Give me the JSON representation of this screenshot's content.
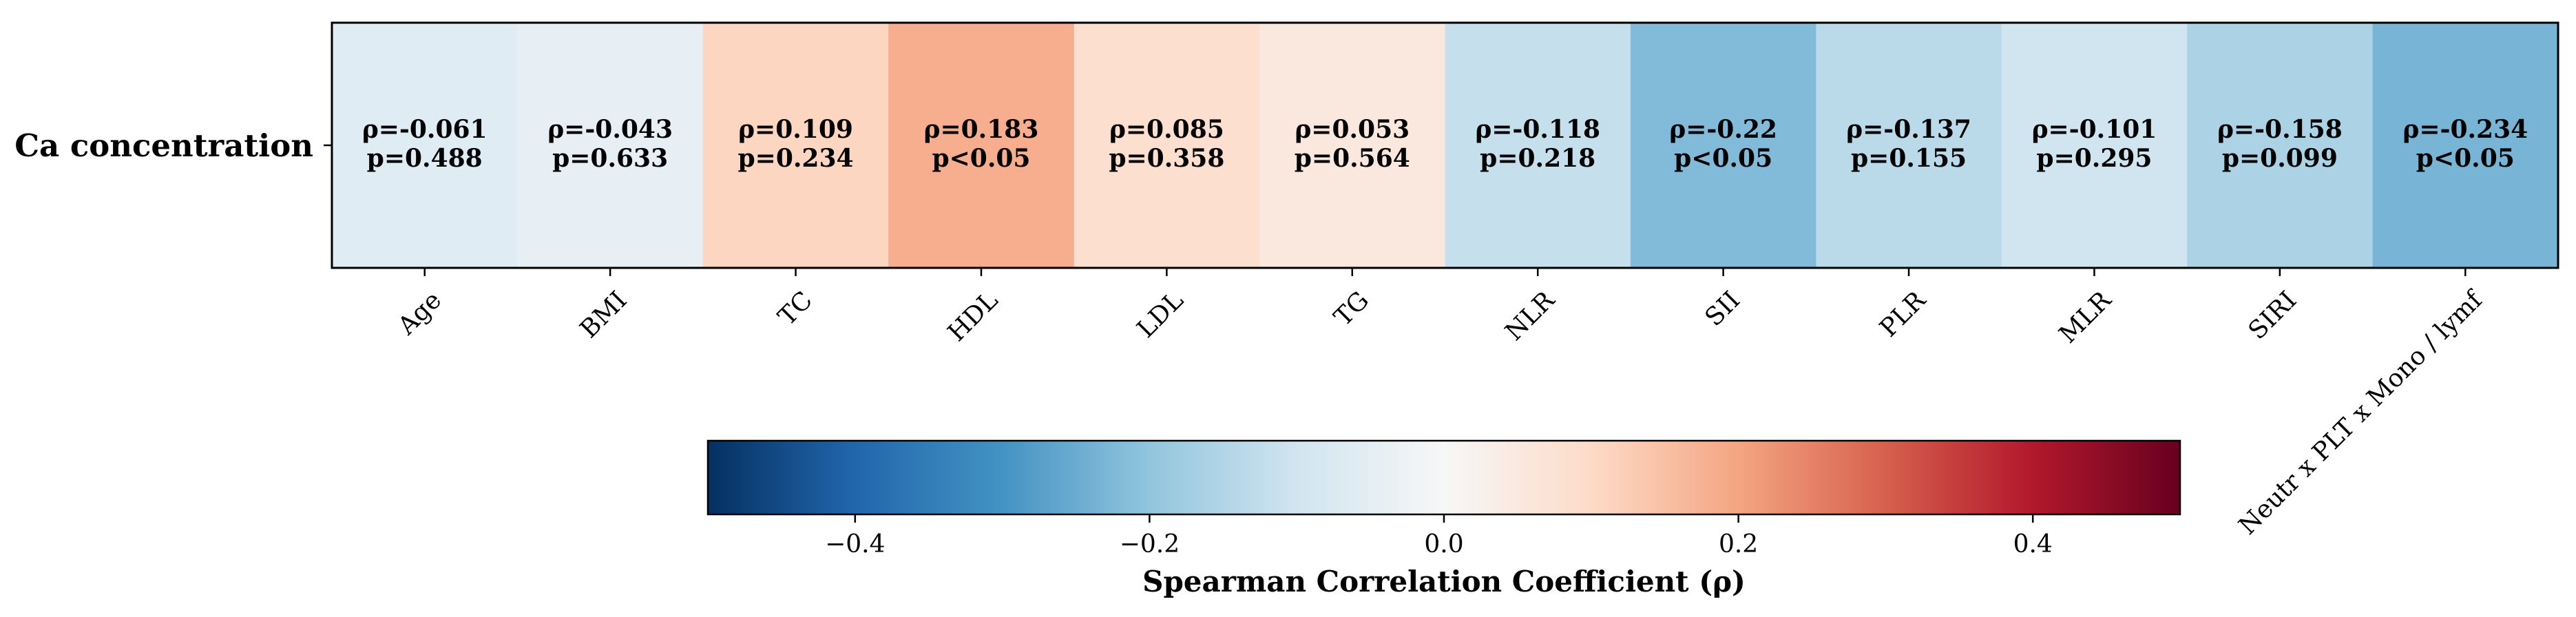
{
  "chart_data": {
    "type": "heatmap",
    "row_label": "Ca concentration",
    "columns": [
      {
        "label": "Age",
        "rho": -0.061,
        "rho_text": "ρ=-0.061",
        "p_text": "p=0.488"
      },
      {
        "label": "BMI",
        "rho": -0.043,
        "rho_text": "ρ=-0.043",
        "p_text": "p=0.633"
      },
      {
        "label": "TC",
        "rho": 0.109,
        "rho_text": "ρ=0.109",
        "p_text": "p=0.234"
      },
      {
        "label": "HDL",
        "rho": 0.183,
        "rho_text": "ρ=0.183",
        "p_text": "p<0.05"
      },
      {
        "label": "LDL",
        "rho": 0.085,
        "rho_text": "ρ=0.085",
        "p_text": "p=0.358"
      },
      {
        "label": "TG",
        "rho": 0.053,
        "rho_text": "ρ=0.053",
        "p_text": "p=0.564"
      },
      {
        "label": "NLR",
        "rho": -0.118,
        "rho_text": "ρ=-0.118",
        "p_text": "p=0.218"
      },
      {
        "label": "SII",
        "rho": -0.22,
        "rho_text": "ρ=-0.22",
        "p_text": "p<0.05"
      },
      {
        "label": "PLR",
        "rho": -0.137,
        "rho_text": "ρ=-0.137",
        "p_text": "p=0.155"
      },
      {
        "label": "MLR",
        "rho": -0.101,
        "rho_text": "ρ=-0.101",
        "p_text": "p=0.295"
      },
      {
        "label": "SIRI",
        "rho": -0.158,
        "rho_text": "ρ=-0.158",
        "p_text": "p=0.099"
      },
      {
        "label": "Neutr x PLT x Mono / lymf",
        "rho": -0.234,
        "rho_text": "ρ=-0.234",
        "p_text": "p<0.05"
      }
    ],
    "colorbar": {
      "title": "Spearman Correlation Coefficient (ρ)",
      "vmin": -0.5,
      "vmax": 0.5,
      "ticks": [
        -0.4,
        -0.2,
        0.0,
        0.2,
        0.4
      ],
      "tick_labels": [
        "−0.4",
        "−0.2",
        "0.0",
        "0.2",
        "0.4"
      ],
      "colormap": [
        "#053061",
        "#2166ac",
        "#4393c3",
        "#92c5de",
        "#d1e5f0",
        "#f7f7f7",
        "#fddbc7",
        "#f4a582",
        "#d6604d",
        "#b2182b",
        "#67001f"
      ]
    }
  }
}
